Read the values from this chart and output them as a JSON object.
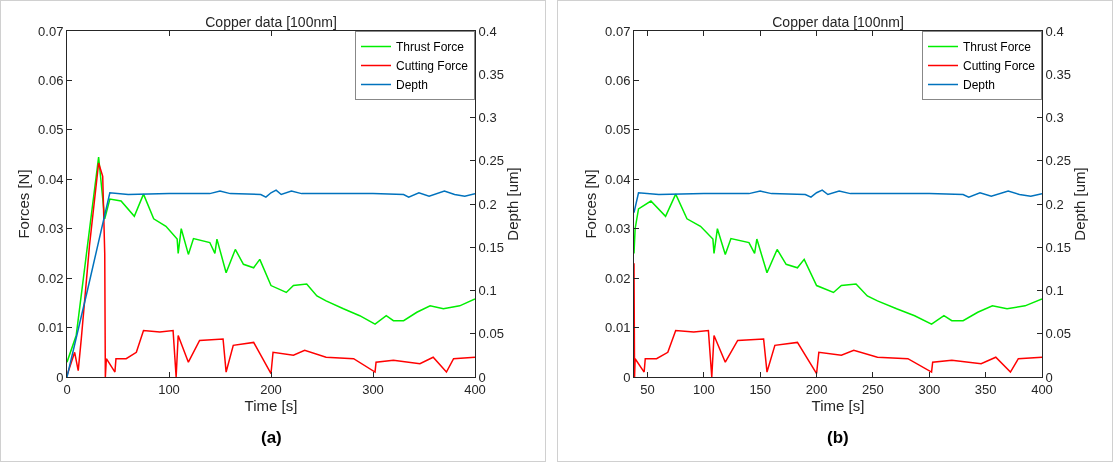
{
  "chart_data": [
    {
      "type": "line",
      "title": "Copper data [100nm]",
      "xlabel": "Time [s]",
      "ylabel": "Forces [N]",
      "y2label": "Depth [um]",
      "annotations": [
        "(a)"
      ],
      "xlim": [
        0,
        400
      ],
      "xticks": [
        0,
        100,
        200,
        300,
        400
      ],
      "ylim": [
        0,
        0.07
      ],
      "yticks": [
        0,
        0.01,
        0.02,
        0.03,
        0.04,
        0.05,
        0.06,
        0.07
      ],
      "y2lim": [
        0,
        0.4
      ],
      "y2ticks": [
        0,
        0.05,
        0.1,
        0.15,
        0.2,
        0.25,
        0.3,
        0.35,
        0.4
      ],
      "grid": false,
      "legend": "top right",
      "line_style": "solid",
      "marker": "none",
      "series": [
        {
          "name": "Thrust Force",
          "color": "#00ee00",
          "x": [
            0,
            9,
            31,
            37,
            42,
            53,
            66,
            75,
            85,
            97,
            108,
            109,
            112,
            119,
            124,
            140,
            145,
            147,
            156,
            165,
            173,
            183,
            189,
            200,
            215,
            222,
            235,
            245,
            254,
            271,
            287,
            302,
            313,
            320,
            330,
            343,
            356,
            369,
            385,
            400
          ],
          "values": [
            0.003,
            0.0084,
            0.0445,
            0.032,
            0.036,
            0.0356,
            0.0325,
            0.037,
            0.032,
            0.0305,
            0.0279,
            0.025,
            0.03,
            0.0248,
            0.028,
            0.0272,
            0.025,
            0.0279,
            0.0211,
            0.0258,
            0.0228,
            0.0221,
            0.0238,
            0.0185,
            0.0171,
            0.0185,
            0.0188,
            0.0164,
            0.0154,
            0.0138,
            0.0124,
            0.0107,
            0.0124,
            0.0114,
            0.0114,
            0.0131,
            0.0144,
            0.0138,
            0.0144,
            0.0158
          ]
        },
        {
          "name": "Cutting Force",
          "color": "#ff0000",
          "x": [
            0,
            7.5,
            11,
            14,
            22,
            31,
            35,
            37,
            37.6,
            38.6,
            47,
            48,
            58,
            68,
            75,
            91,
            104,
            107,
            109,
            119,
            130,
            153,
            156,
            163,
            183,
            200,
            202,
            222,
            233,
            254,
            281,
            302,
            303,
            320,
            346,
            359,
            372,
            379,
            400
          ],
          "values": [
            0.0003,
            0.005,
            0.0013,
            0.0077,
            0.0265,
            0.0433,
            0.0406,
            0.025,
            0,
            0.0037,
            0.001,
            0.0037,
            0.0037,
            0.005,
            0.0094,
            0.0091,
            0.0094,
            0,
            0.0084,
            0.003,
            0.0074,
            0.0077,
            0.001,
            0.0064,
            0.007,
            0.0007,
            0.005,
            0.0044,
            0.0054,
            0.004,
            0.0037,
            0.001,
            0.003,
            0.0034,
            0.0027,
            0.004,
            0.001,
            0.0037,
            0.004
          ]
        },
        {
          "name": "Depth",
          "color": "#0072bd",
          "axis": "y2",
          "x": [
            0,
            20,
            42,
            60,
            100,
            140,
            150,
            160,
            190,
            195,
            200,
            205,
            210,
            220,
            230,
            260,
            300,
            330,
            335,
            345,
            355,
            370,
            380,
            390,
            400
          ],
          "values": [
            0,
            0.1,
            0.213,
            0.211,
            0.212,
            0.212,
            0.215,
            0.212,
            0.211,
            0.208,
            0.213,
            0.216,
            0.211,
            0.215,
            0.212,
            0.212,
            0.212,
            0.211,
            0.208,
            0.213,
            0.209,
            0.215,
            0.211,
            0.209,
            0.212
          ]
        }
      ]
    },
    {
      "type": "line",
      "title": "Copper data [100nm]",
      "xlabel": "Time [s]",
      "ylabel": "Forces [N]",
      "y2label": "Depth [um]",
      "annotations": [
        "(b)"
      ],
      "xlim": [
        38,
        400
      ],
      "xticks": [
        50,
        100,
        150,
        200,
        250,
        300,
        350,
        400
      ],
      "ylim": [
        0,
        0.07
      ],
      "yticks": [
        0,
        0.01,
        0.02,
        0.03,
        0.04,
        0.05,
        0.06,
        0.07
      ],
      "y2lim": [
        0,
        0.4
      ],
      "y2ticks": [
        0,
        0.05,
        0.1,
        0.15,
        0.2,
        0.25,
        0.3,
        0.35,
        0.4
      ],
      "grid": false,
      "legend": "top right",
      "line_style": "solid",
      "marker": "none",
      "series": [
        {
          "name": "Thrust Force",
          "color": "#00ee00",
          "x": [
            38,
            39,
            42,
            53,
            66,
            75,
            85,
            97,
            108,
            109,
            112,
            119,
            124,
            140,
            145,
            147,
            156,
            165,
            173,
            183,
            189,
            200,
            215,
            222,
            235,
            245,
            254,
            271,
            287,
            302,
            313,
            320,
            330,
            343,
            356,
            369,
            385,
            400
          ],
          "values": [
            0.025,
            0.03,
            0.034,
            0.0356,
            0.0325,
            0.037,
            0.032,
            0.0305,
            0.0279,
            0.025,
            0.03,
            0.0248,
            0.028,
            0.0272,
            0.025,
            0.0279,
            0.0211,
            0.0258,
            0.0228,
            0.0221,
            0.0238,
            0.0185,
            0.0171,
            0.0185,
            0.0188,
            0.0164,
            0.0154,
            0.0138,
            0.0124,
            0.0107,
            0.0124,
            0.0114,
            0.0114,
            0.0131,
            0.0144,
            0.0138,
            0.0144,
            0.0158
          ]
        },
        {
          "name": "Cutting Force",
          "color": "#ff0000",
          "x": [
            38,
            38.5,
            39,
            47,
            48,
            58,
            68,
            75,
            91,
            104,
            107,
            109,
            119,
            130,
            153,
            156,
            163,
            183,
            200,
            202,
            222,
            233,
            254,
            281,
            302,
            303,
            320,
            346,
            359,
            372,
            379,
            400
          ],
          "values": [
            0.023,
            0,
            0.0037,
            0.001,
            0.0037,
            0.0037,
            0.005,
            0.0094,
            0.0091,
            0.0094,
            0,
            0.0084,
            0.003,
            0.0074,
            0.0077,
            0.001,
            0.0064,
            0.007,
            0.0007,
            0.005,
            0.0044,
            0.0054,
            0.004,
            0.0037,
            0.001,
            0.003,
            0.0034,
            0.0027,
            0.004,
            0.001,
            0.0037,
            0.004
          ]
        },
        {
          "name": "Depth",
          "color": "#0072bd",
          "axis": "y2",
          "x": [
            38,
            42,
            60,
            100,
            140,
            150,
            160,
            190,
            195,
            200,
            205,
            210,
            220,
            230,
            260,
            300,
            330,
            335,
            345,
            355,
            370,
            380,
            390,
            400
          ],
          "values": [
            0.19,
            0.213,
            0.211,
            0.212,
            0.212,
            0.215,
            0.212,
            0.211,
            0.208,
            0.213,
            0.216,
            0.211,
            0.215,
            0.212,
            0.212,
            0.212,
            0.211,
            0.208,
            0.213,
            0.209,
            0.215,
            0.211,
            0.209,
            0.212
          ]
        }
      ]
    }
  ]
}
